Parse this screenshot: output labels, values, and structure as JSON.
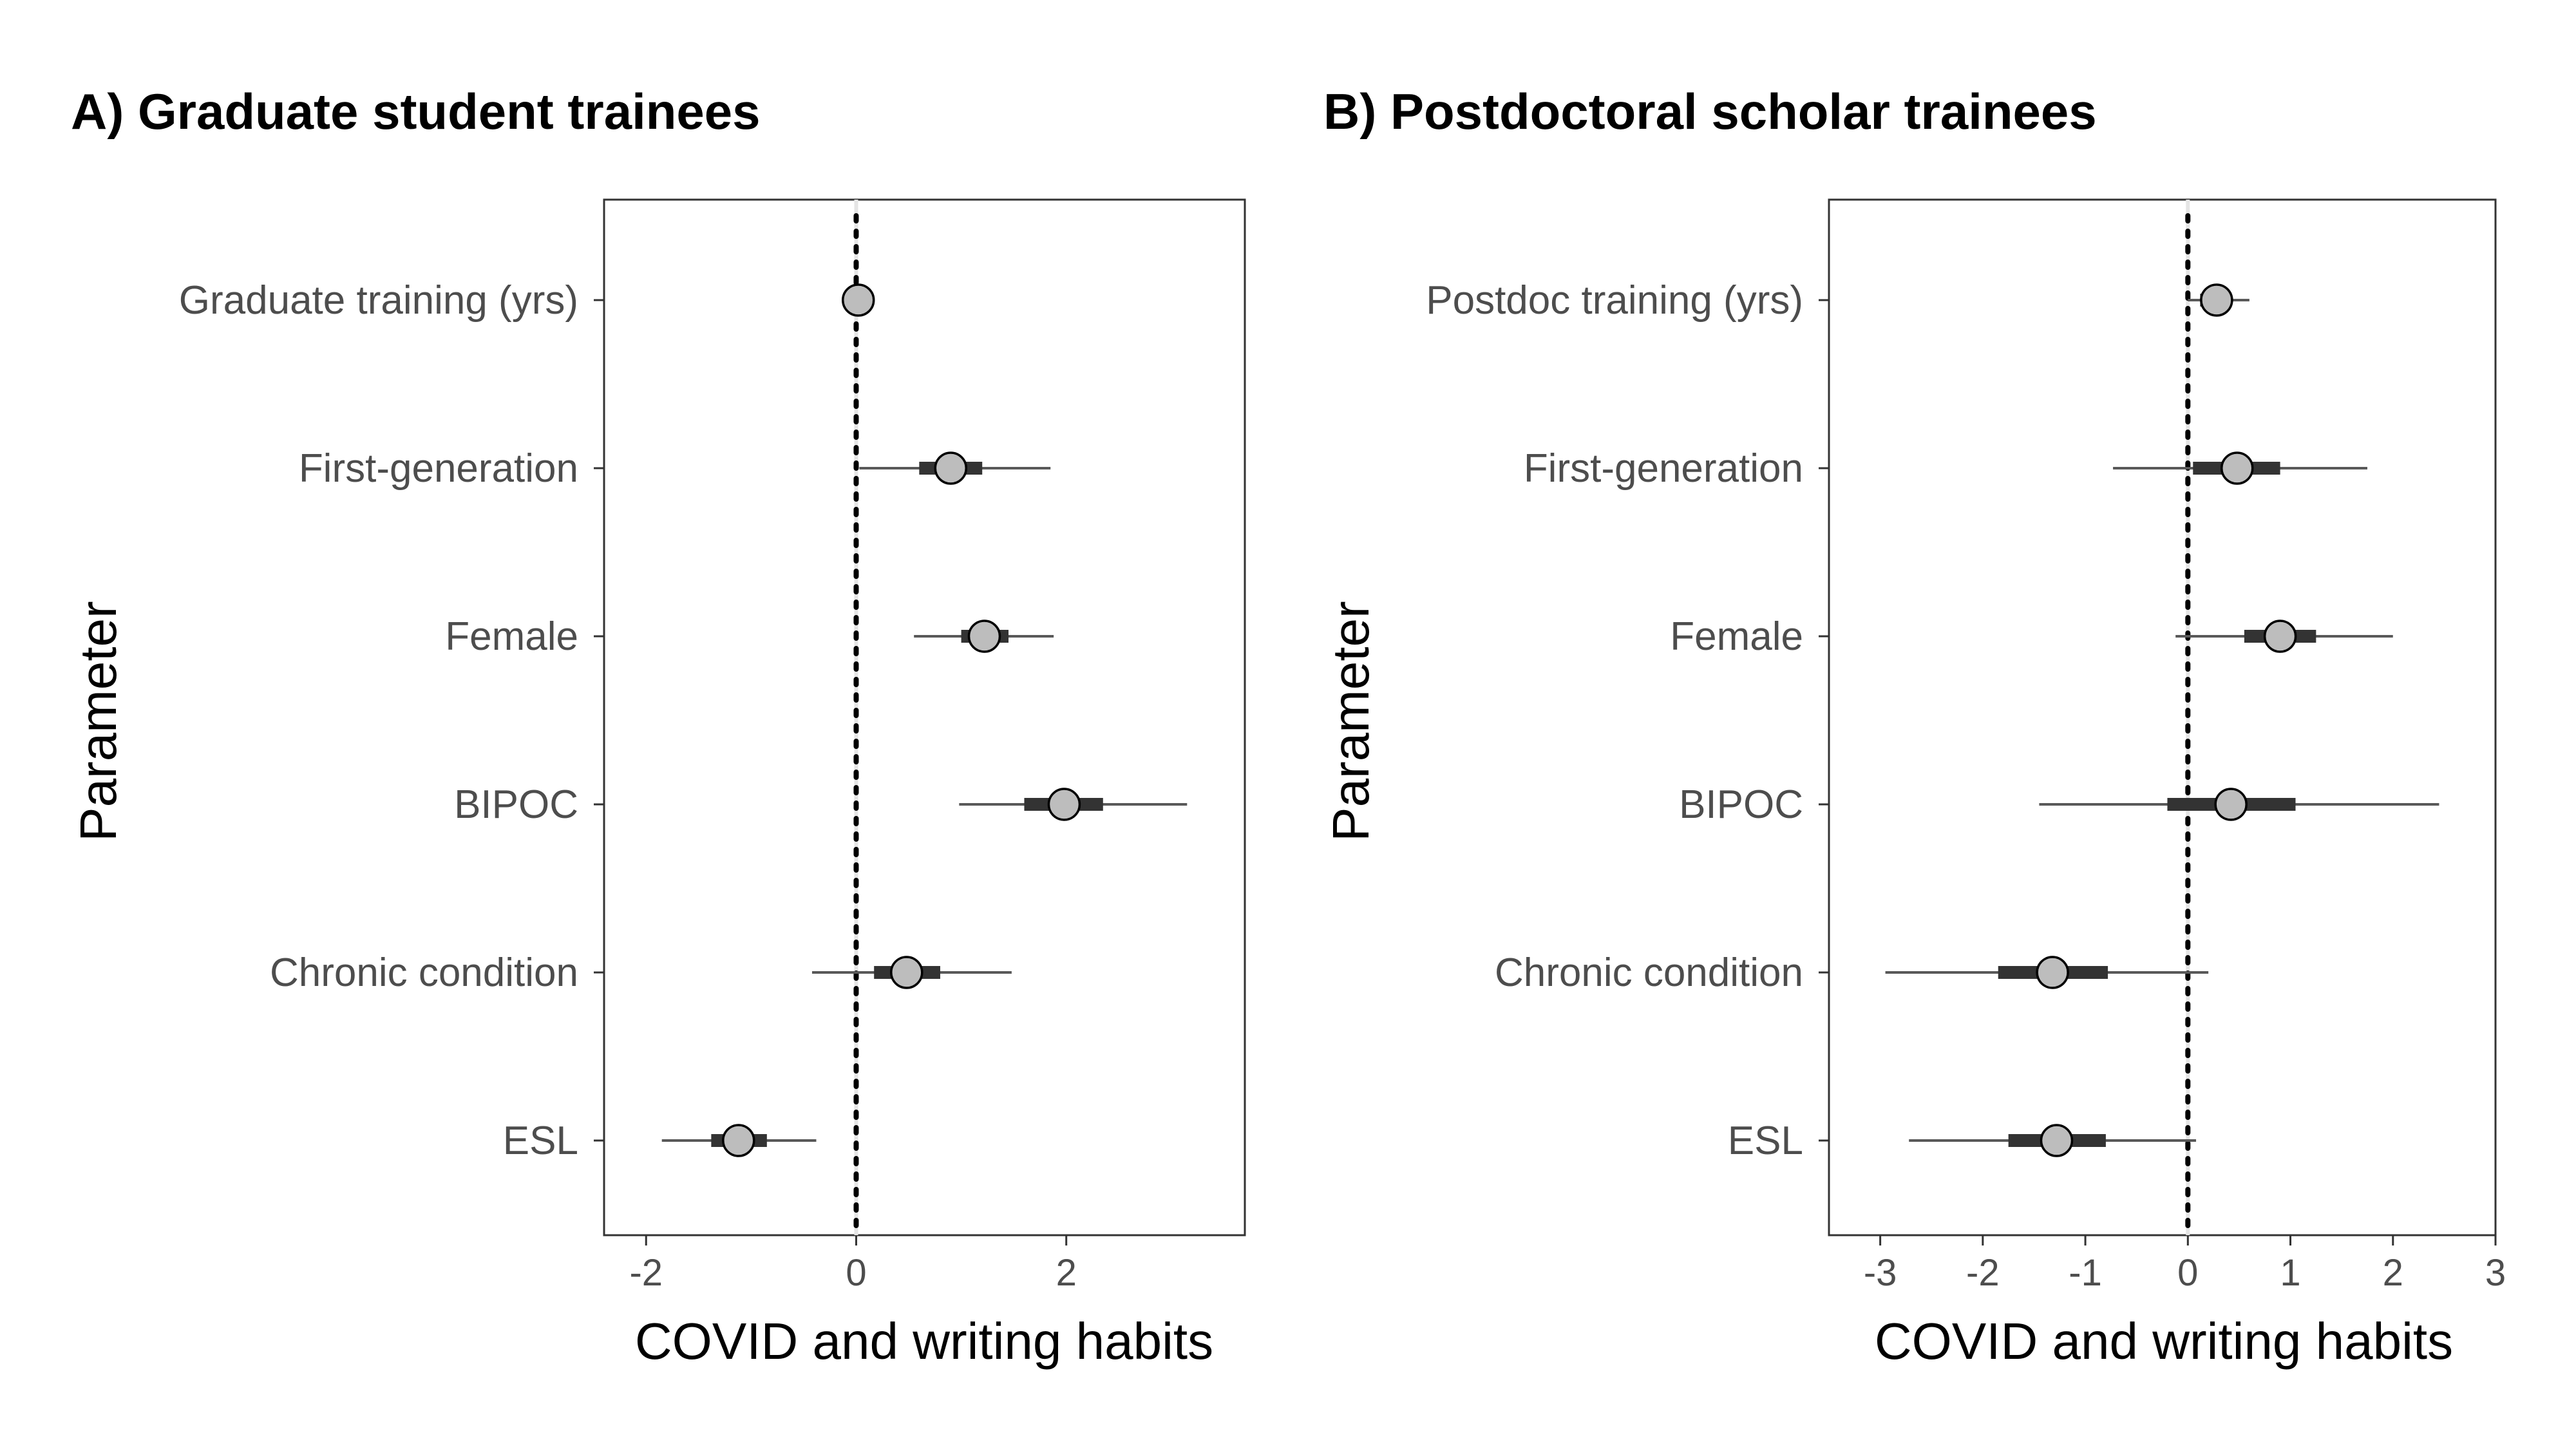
{
  "chart_data": [
    {
      "type": "interval",
      "panel_label": "A) Graduate student trainees",
      "xlabel": "COVID and writing habits",
      "ylabel": "Parameter",
      "xlim": [
        -2.4,
        3.7
      ],
      "xticks": [
        -2,
        0,
        2
      ],
      "reference_line": 0,
      "grid": false,
      "parameters": [
        {
          "label": "Graduate training (yrs)",
          "estimate": 0.02,
          "inner": [
            -0.05,
            0.09
          ],
          "outer": [
            -0.1,
            0.14
          ]
        },
        {
          "label": "First-generation",
          "estimate": 0.9,
          "inner": [
            0.6,
            1.2
          ],
          "outer": [
            0.03,
            1.85
          ]
        },
        {
          "label": "Female",
          "estimate": 1.22,
          "inner": [
            1.0,
            1.45
          ],
          "outer": [
            0.55,
            1.88
          ]
        },
        {
          "label": "BIPOC",
          "estimate": 1.98,
          "inner": [
            1.6,
            2.35
          ],
          "outer": [
            0.98,
            3.15
          ]
        },
        {
          "label": "Chronic condition",
          "estimate": 0.48,
          "inner": [
            0.17,
            0.8
          ],
          "outer": [
            -0.42,
            1.48
          ]
        },
        {
          "label": "ESL",
          "estimate": -1.12,
          "inner": [
            -1.38,
            -0.85
          ],
          "outer": [
            -1.85,
            -0.38
          ]
        }
      ]
    },
    {
      "type": "interval",
      "panel_label": "B) Postdoctoral scholar trainees",
      "xlabel": "COVID and writing habits",
      "ylabel": "Parameter",
      "xlim": [
        -3.5,
        3.0
      ],
      "xticks": [
        -3,
        -2,
        -1,
        0,
        1,
        2,
        3
      ],
      "reference_line": 0,
      "grid": false,
      "parameters": [
        {
          "label": "Postdoc training (yrs)",
          "estimate": 0.28,
          "inner": [
            0.12,
            0.42
          ],
          "outer": [
            0.0,
            0.6
          ]
        },
        {
          "label": "First-generation",
          "estimate": 0.48,
          "inner": [
            0.05,
            0.9
          ],
          "outer": [
            -0.73,
            1.75
          ]
        },
        {
          "label": "Female",
          "estimate": 0.9,
          "inner": [
            0.55,
            1.25
          ],
          "outer": [
            -0.12,
            2.0
          ]
        },
        {
          "label": "BIPOC",
          "estimate": 0.42,
          "inner": [
            -0.2,
            1.05
          ],
          "outer": [
            -1.45,
            2.45
          ]
        },
        {
          "label": "Chronic condition",
          "estimate": -1.32,
          "inner": [
            -1.85,
            -0.78
          ],
          "outer": [
            -2.95,
            0.2
          ]
        },
        {
          "label": "ESL",
          "estimate": -1.28,
          "inner": [
            -1.75,
            -0.8
          ],
          "outer": [
            -2.72,
            0.08
          ]
        }
      ]
    }
  ],
  "colors": {
    "point_fill": "#bdbdbd",
    "point_stroke": "#000000",
    "interval": "#595959",
    "inner_interval": "#333333",
    "reference": "#000000",
    "frame": "#333333"
  }
}
